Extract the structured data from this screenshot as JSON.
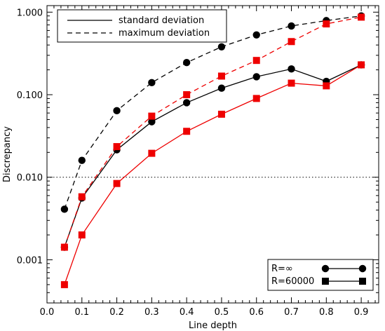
{
  "chart_data": {
    "type": "line",
    "xlabel": "Line depth",
    "ylabel": "Discrepancy",
    "xlim": [
      0.0,
      0.95
    ],
    "ylim": [
      0.0003,
      1.2
    ],
    "y_scale": "log",
    "x_ticks": [
      0.0,
      0.1,
      0.2,
      0.3,
      0.4,
      0.5,
      0.6,
      0.7,
      0.8,
      0.9
    ],
    "x_tick_labels": [
      "0.0",
      "0.1",
      "0.2",
      "0.3",
      "0.4",
      "0.5",
      "0.6",
      "0.7",
      "0.8",
      "0.9"
    ],
    "y_ticks": [
      0.001,
      0.01,
      0.1,
      1.0
    ],
    "y_tick_labels": [
      "0.001",
      "0.010",
      "0.100",
      "1.000"
    ],
    "reference_line": {
      "y": 0.01,
      "style": "dotted"
    },
    "x": [
      0.05,
      0.1,
      0.2,
      0.3,
      0.4,
      0.5,
      0.6,
      0.7,
      0.8,
      0.9
    ],
    "series": [
      {
        "resolution": "inf",
        "statistic": "standard",
        "color": "#000000",
        "line": "solid",
        "marker": "circle",
        "values": [
          0.00142,
          0.0056,
          0.0215,
          0.047,
          0.08,
          0.12,
          0.165,
          0.205,
          0.145,
          0.23
        ]
      },
      {
        "resolution": "inf",
        "statistic": "maximum",
        "color": "#000000",
        "line": "dashed",
        "marker": "circle",
        "values": [
          0.0041,
          0.016,
          0.064,
          0.14,
          0.245,
          0.38,
          0.53,
          0.68,
          0.79,
          0.9
        ]
      },
      {
        "resolution": "60000",
        "statistic": "standard",
        "color": "#ee0000",
        "line": "solid",
        "marker": "square",
        "values": [
          0.0005,
          0.002,
          0.0084,
          0.0195,
          0.036,
          0.058,
          0.09,
          0.138,
          0.128,
          0.23
        ]
      },
      {
        "resolution": "60000",
        "statistic": "maximum",
        "color": "#ee0000",
        "line": "dashed",
        "marker": "square",
        "values": [
          0.00142,
          0.0058,
          0.0235,
          0.055,
          0.1,
          0.168,
          0.26,
          0.44,
          0.72,
          0.87
        ]
      }
    ],
    "legend_lines": {
      "placement": "top-left",
      "entries": [
        {
          "label": "standard deviation",
          "line": "solid"
        },
        {
          "label": "maximum deviation",
          "line": "dashed"
        }
      ]
    },
    "legend_markers": {
      "placement": "bottom-right",
      "entries": [
        {
          "label": "R=∞",
          "marker": "circle"
        },
        {
          "label": "R=60000",
          "marker": "square"
        }
      ]
    }
  }
}
